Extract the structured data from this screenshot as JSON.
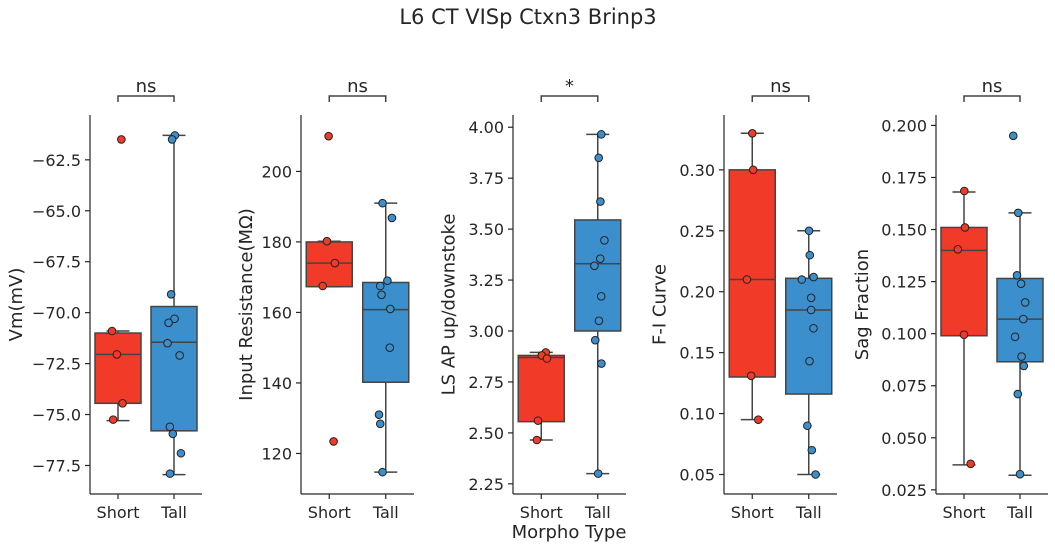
{
  "title": "L6 CT VISp Ctxn3 Brinp3",
  "xlabel": "Morpho Type",
  "colors": {
    "short": "#f23a28",
    "tall": "#3b8fcc",
    "axis": "#262626",
    "box_edge": "#444444"
  },
  "chart_data": [
    {
      "type": "box",
      "ylabel": "Vm(mV)",
      "categories": [
        "Short",
        "Tall"
      ],
      "ylim": [
        -78.9,
        -60.3
      ],
      "yticks": [
        -77.5,
        -75.0,
        -72.5,
        -70.0,
        -67.5,
        -65.0,
        -62.5
      ],
      "ytick_labels": [
        "−77.5",
        "−75.0",
        "−72.5",
        "−70.0",
        "−67.5",
        "−65.0",
        "−62.5"
      ],
      "significance": "ns",
      "boxes": [
        {
          "q1": -74.45,
          "median": -72.05,
          "q3": -71.0,
          "whislo": -75.3,
          "whishi": -70.9
        },
        {
          "q1": -75.8,
          "median": -71.45,
          "q3": -69.7,
          "whislo": -77.95,
          "whishi": -61.3
        }
      ],
      "points": [
        [
          -61.5,
          -70.9,
          -72.05,
          -74.45,
          -75.25
        ],
        [
          -61.3,
          -61.5,
          -69.1,
          -70.3,
          -70.5,
          -71.5,
          -72.1,
          -75.6,
          -75.95,
          -76.9,
          -77.9
        ]
      ]
    },
    {
      "type": "box",
      "ylabel": "Input Resistance(MΩ)",
      "categories": [
        "Short",
        "Tall"
      ],
      "ylim": [
        108.5,
        216
      ],
      "yticks": [
        120,
        140,
        160,
        180,
        200
      ],
      "ytick_labels": [
        "120",
        "140",
        "160",
        "180",
        "200"
      ],
      "significance": "ns",
      "boxes": [
        {
          "q1": 167.3,
          "median": 174.0,
          "q3": 180.0,
          "whislo": 167.3,
          "whishi": 180.2
        },
        {
          "q1": 140.2,
          "median": 160.8,
          "q3": 168.5,
          "whislo": 114.7,
          "whishi": 191.0
        }
      ],
      "points": [
        [
          210.0,
          180.2,
          174.0,
          167.5,
          123.4
        ],
        [
          191.0,
          186.8,
          169.0,
          167.5,
          165.0,
          161.0,
          150.0,
          131.0,
          128.4,
          114.7
        ]
      ]
    },
    {
      "type": "box",
      "ylabel": "LS AP up/downstoke",
      "categories": [
        "Short",
        "Tall"
      ],
      "ylim": [
        2.2,
        4.06
      ],
      "yticks": [
        2.25,
        2.5,
        2.75,
        3.0,
        3.25,
        3.5,
        3.75,
        4.0
      ],
      "ytick_labels": [
        "2.25",
        "2.50",
        "2.75",
        "3.00",
        "3.25",
        "3.50",
        "3.75",
        "4.00"
      ],
      "significance": "*",
      "boxes": [
        {
          "q1": 2.555,
          "median": 2.87,
          "q3": 2.88,
          "whislo": 2.465,
          "whishi": 2.895
        },
        {
          "q1": 3.0,
          "median": 3.33,
          "q3": 3.545,
          "whislo": 2.3,
          "whishi": 3.965
        }
      ],
      "points": [
        [
          2.895,
          2.88,
          2.865,
          2.56,
          2.465
        ],
        [
          3.965,
          3.85,
          3.635,
          3.445,
          3.355,
          3.32,
          3.17,
          3.05,
          2.955,
          2.84,
          2.3
        ]
      ]
    },
    {
      "type": "box",
      "ylabel": "F-I Curve",
      "categories": [
        "Short",
        "Tall"
      ],
      "ylim": [
        0.034,
        0.345
      ],
      "yticks": [
        0.05,
        0.1,
        0.15,
        0.2,
        0.25,
        0.3
      ],
      "ytick_labels": [
        "0.05",
        "0.10",
        "0.15",
        "0.20",
        "0.25",
        "0.30"
      ],
      "significance": "ns",
      "boxes": [
        {
          "q1": 0.13,
          "median": 0.21,
          "q3": 0.3,
          "whislo": 0.095,
          "whishi": 0.33
        },
        {
          "q1": 0.116,
          "median": 0.185,
          "q3": 0.211,
          "whislo": 0.05,
          "whishi": 0.25
        }
      ],
      "points": [
        [
          0.33,
          0.3,
          0.21,
          0.131,
          0.095
        ],
        [
          0.25,
          0.23,
          0.212,
          0.21,
          0.195,
          0.185,
          0.17,
          0.143,
          0.09,
          0.07,
          0.05
        ]
      ]
    },
    {
      "type": "box",
      "ylabel": "Sag Fraction",
      "categories": [
        "Short",
        "Tall"
      ],
      "ylim": [
        0.023,
        0.205
      ],
      "yticks": [
        0.025,
        0.05,
        0.075,
        0.1,
        0.125,
        0.15,
        0.175,
        0.2
      ],
      "ytick_labels": [
        "0.025",
        "0.050",
        "0.075",
        "0.100",
        "0.125",
        "0.150",
        "0.175",
        "0.200"
      ],
      "significance": "ns",
      "boxes": [
        {
          "q1": 0.099,
          "median": 0.14,
          "q3": 0.151,
          "whislo": 0.037,
          "whishi": 0.168
        },
        {
          "q1": 0.0865,
          "median": 0.107,
          "q3": 0.1265,
          "whislo": 0.032,
          "whishi": 0.158
        }
      ],
      "points": [
        [
          0.1685,
          0.151,
          0.1405,
          0.0995,
          0.0375
        ],
        [
          0.195,
          0.158,
          0.128,
          0.124,
          0.115,
          0.107,
          0.0985,
          0.089,
          0.0845,
          0.071,
          0.0325
        ]
      ]
    }
  ]
}
